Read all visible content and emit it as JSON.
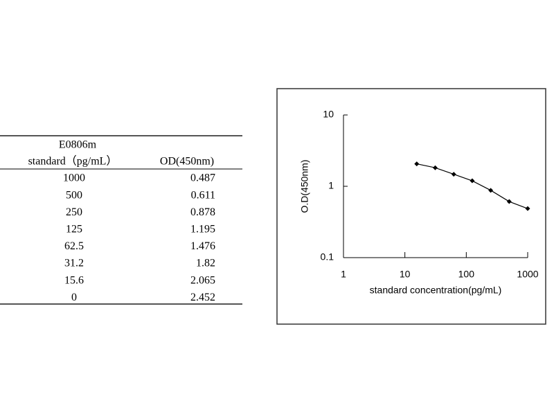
{
  "table": {
    "header": {
      "line1": "E0806m",
      "col1": "standard（pg/mL）",
      "col2": "OD(450nm)"
    },
    "rows": [
      [
        1000,
        0.487
      ],
      [
        500,
        0.611
      ],
      [
        250,
        0.878
      ],
      [
        125,
        1.195
      ],
      [
        62.5,
        1.476
      ],
      [
        31.2,
        1.82
      ],
      [
        15.6,
        2.065
      ],
      [
        0,
        2.452
      ]
    ]
  },
  "chart_data": {
    "type": "line",
    "x_label": "standard concentration(pg/mL)",
    "y_label": "O.D(450nm)",
    "x": [
      15.6,
      31.2,
      62.5,
      125,
      250,
      500,
      1000
    ],
    "values": [
      2.065,
      1.82,
      1.476,
      1.195,
      0.878,
      0.611,
      0.487
    ],
    "color": "#000000",
    "xlog": true,
    "ylog": true,
    "xlim": [
      1,
      1000
    ],
    "ylim": [
      0.1,
      10
    ],
    "xticks": [
      1,
      10,
      100,
      1000
    ],
    "yticks": [
      0.1,
      1,
      10
    ]
  }
}
